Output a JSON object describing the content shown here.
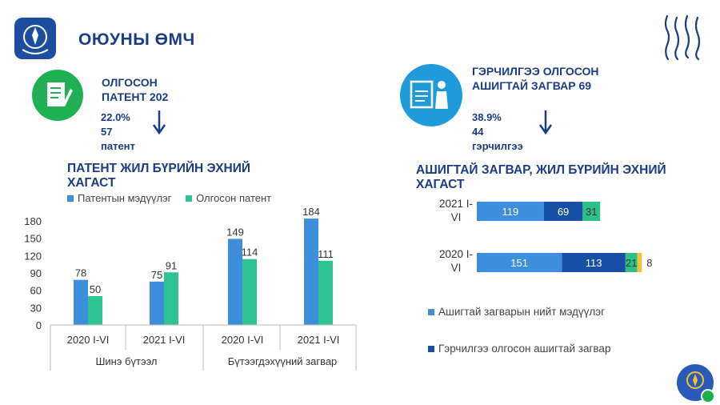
{
  "header": {
    "title": "ОЮУНЫ ӨМЧ"
  },
  "patent_block": {
    "line1": "ОЛГОСОН",
    "line2": "ПАТЕНТ 202",
    "pct": "22.0%",
    "count": "57",
    "unit": "патент"
  },
  "model_block": {
    "line1": "ГЭРЧИЛГЭЭ ОЛГОСОН",
    "line2": "АШИГТАЙ ЗАГВАР 69",
    "pct": "38.9%",
    "count": "44",
    "unit": "гэрчилгээ"
  },
  "colors": {
    "light_blue": "#3d8fdc",
    "teal": "#2ec392",
    "dark_blue": "#174fa6",
    "green": "#2fc08a",
    "yellow": "#f2c330"
  },
  "chart_data": [
    {
      "type": "bar",
      "title": "ПАТЕНТ ЖИЛ БҮРИЙН ЭХНИЙ ХАГАСТ",
      "categories": [
        "2020 I-VI",
        "2021 I-VI",
        "2020 I-VI",
        "2021 I-VI"
      ],
      "groups": [
        "Шинэ бүтээл",
        "Бүтээгдэхүүний загвар"
      ],
      "series": [
        {
          "name": "Патентын мэдүүлэг",
          "values": [
            78,
            75,
            149,
            184
          ]
        },
        {
          "name": "Олгосон патент",
          "values": [
            50,
            91,
            114,
            111
          ]
        }
      ],
      "ylim": [
        0,
        180
      ],
      "yticks": [
        "0",
        "30",
        "60",
        "90",
        "120",
        "150",
        "180"
      ],
      "legend": "top"
    },
    {
      "type": "bar",
      "orientation": "horizontal",
      "stacked": true,
      "title": "АШИГТАЙ ЗАГВАР, ЖИЛ БҮРИЙН ЭХНИЙ ХАГАСТ",
      "categories": [
        "2021 I-VI",
        "2020 I-VI"
      ],
      "series": [
        {
          "name": "Ашигтай загварын нийт мэдүүлэг",
          "values": [
            119,
            151
          ]
        },
        {
          "name": "Гэрчилгээ олгосон ашигтай загвар",
          "values": [
            69,
            113
          ]
        },
        {
          "values": [
            31,
            21
          ]
        },
        {
          "values": [
            0,
            8
          ]
        }
      ],
      "legend": "bottom"
    }
  ]
}
